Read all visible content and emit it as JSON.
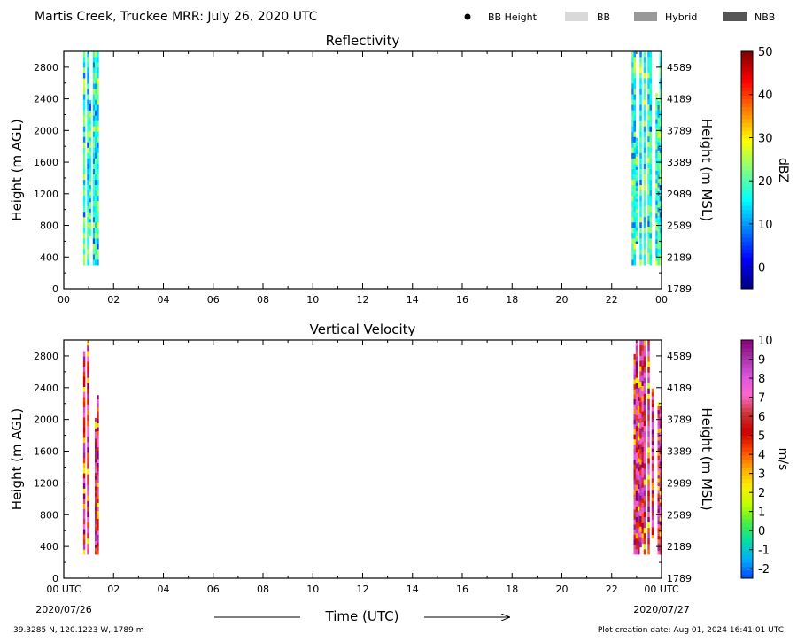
{
  "header": {
    "title": "Martis Creek, Truckee MRR:  July 26, 2020 UTC",
    "legend": [
      {
        "label": "BB Height",
        "symbol": "dot",
        "color": "#000000"
      },
      {
        "label": "BB",
        "symbol": "rect",
        "color": "#d9d9d9"
      },
      {
        "label": "Hybrid",
        "symbol": "rect",
        "color": "#999999"
      },
      {
        "label": "NBB",
        "symbol": "rect",
        "color": "#555555"
      }
    ]
  },
  "footer": {
    "location": "39.3285 N, 120.1223 W, 1789 m",
    "creation": "Plot creation date: Aug 01, 2024 16:41:01 UTC",
    "xlabel": "Time (UTC)",
    "start_date": "2020/07/26",
    "end_date": "2020/07/27"
  },
  "chart_data": [
    {
      "type": "heatmap",
      "title": "Reflectivity",
      "ylabel": "Height (m AGL)",
      "y2label": "Height (m MSL)",
      "colorbar_label": "dBZ",
      "colorbar_ticks": [
        0,
        10,
        20,
        30,
        40,
        50
      ],
      "colorbar_range": [
        -5,
        50
      ],
      "colormap": [
        "#00007f",
        "#0000ff",
        "#007fff",
        "#00ffff",
        "#7fff7f",
        "#ffff00",
        "#ff7f00",
        "#ff0000",
        "#7f0000"
      ],
      "x_ticks": [
        "00",
        "02",
        "04",
        "06",
        "08",
        "10",
        "12",
        "14",
        "16",
        "18",
        "20",
        "22",
        "00"
      ],
      "xlim": [
        0,
        24
      ],
      "ylim": [
        0,
        3000
      ],
      "y_ticks": [
        0,
        400,
        800,
        1200,
        1600,
        2000,
        2400,
        2800
      ],
      "y2_ticks": [
        "1789",
        "2189",
        "2589",
        "2989",
        "3389",
        "3789",
        "4189",
        "4589"
      ],
      "echo_periods": [
        {
          "start_hour": 0.7,
          "end_hour": 1.4,
          "height_range": [
            300,
            3000
          ]
        },
        {
          "start_hour": 22.8,
          "end_hour": 24.0,
          "height_range": [
            300,
            3000
          ]
        }
      ]
    },
    {
      "type": "heatmap",
      "title": "Vertical Velocity",
      "ylabel": "Height (m AGL)",
      "y2label": "Height (m MSL)",
      "colorbar_label": "m/s",
      "colorbar_ticks": [
        -2,
        -1,
        0,
        1,
        2,
        3,
        4,
        5,
        6,
        7,
        8,
        9,
        10
      ],
      "colorbar_range": [
        -2.5,
        10
      ],
      "colormap": [
        "#0044ff",
        "#00aaff",
        "#00ddaa",
        "#44ee44",
        "#bbff00",
        "#ffee00",
        "#ffaa00",
        "#ff4400",
        "#cc0000",
        "#cc3333",
        "#ff66cc",
        "#dd55dd",
        "#aa33aa",
        "#880077"
      ],
      "x_ticks": [
        "00 UTC",
        "02",
        "04",
        "06",
        "08",
        "10",
        "12",
        "14",
        "16",
        "18",
        "20",
        "22",
        "00 UTC"
      ],
      "xlim": [
        0,
        24
      ],
      "ylim": [
        0,
        3000
      ],
      "y_ticks": [
        0,
        400,
        800,
        1200,
        1600,
        2000,
        2400,
        2800
      ],
      "y2_ticks": [
        "1789",
        "2189",
        "2589",
        "2989",
        "3389",
        "3789",
        "4189",
        "4589"
      ],
      "echo_periods": [
        {
          "start_hour": 0.7,
          "end_hour": 1.4,
          "height_range": [
            300,
            3000
          ]
        },
        {
          "start_hour": 22.8,
          "end_hour": 24.0,
          "height_range": [
            300,
            3000
          ]
        }
      ]
    }
  ]
}
